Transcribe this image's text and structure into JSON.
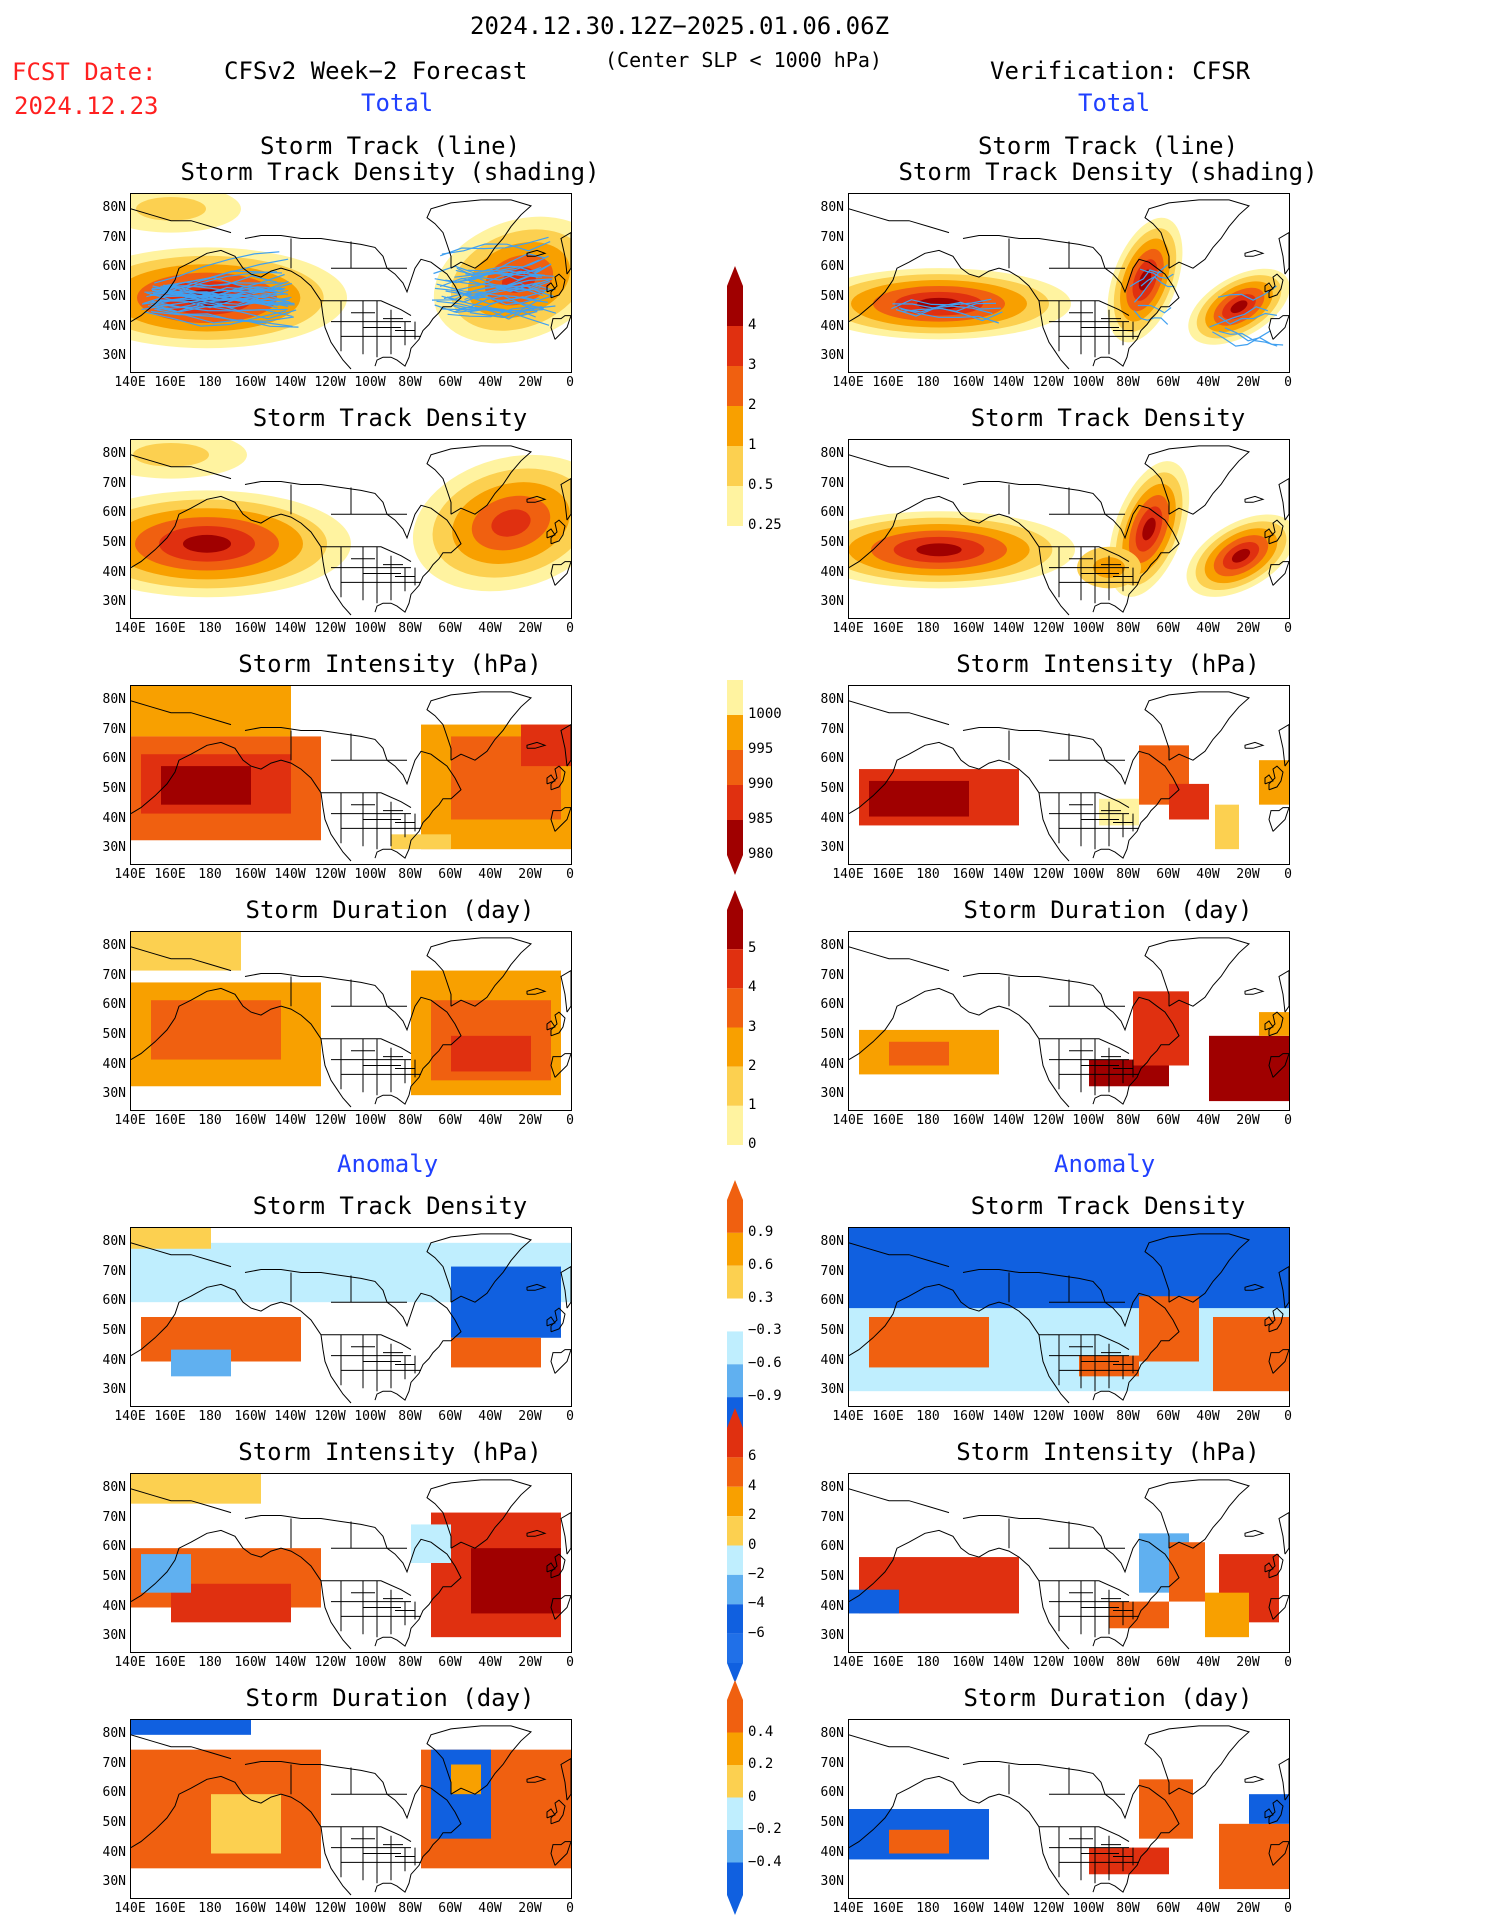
{
  "header": {
    "date_range": "2024.12.30.12Z−2025.01.06.06Z",
    "condition": "(Center SLP < 1000 hPa)",
    "fcst_label": "FCST Date:",
    "fcst_date": "2024.12.23",
    "left_title": "CFSv2 Week−2 Forecast",
    "right_title": "Verification: CFSR",
    "total_label": "Total",
    "anomaly_label": "Anomaly"
  },
  "panel_titles": {
    "track_line": "Storm Track (line)",
    "track_shading": "Storm Track Density (shading)",
    "density": "Storm Track Density",
    "intensity": "Storm Intensity (hPa)",
    "duration": "Storm Duration (day)"
  },
  "axes": {
    "lat_ticks": [
      "80N",
      "70N",
      "60N",
      "50N",
      "40N",
      "30N"
    ],
    "lon_ticks": [
      "140E",
      "160E",
      "180",
      "160W",
      "140W",
      "120W",
      "100W",
      "80W",
      "60W",
      "40W",
      "20W",
      "0"
    ]
  },
  "colorbars": {
    "density_total": [
      "4",
      "3",
      "2",
      "1",
      "0.5",
      "0.25"
    ],
    "intensity_total": [
      "1000",
      "995",
      "990",
      "985",
      "980"
    ],
    "duration_total": [
      "5",
      "4",
      "3",
      "2",
      "1",
      "0"
    ],
    "density_anom": [
      "0.9",
      "0.6",
      "0.3",
      "−0.3",
      "−0.6",
      "−0.9"
    ],
    "intensity_anom": [
      "6",
      "4",
      "2",
      "0",
      "−2",
      "−4",
      "−6"
    ],
    "duration_anom": [
      "0.4",
      "0.2",
      "0",
      "−0.2",
      "−0.4"
    ]
  },
  "colors": {
    "dark_red": "#a00000",
    "red": "#e03010",
    "orange_red": "#f06010",
    "orange": "#f8a000",
    "light_orange": "#fcd050",
    "pale_yellow": "#fff3a0",
    "light_blue": "#bfeefe",
    "mid_blue": "#60b0f0",
    "blue": "#1060e0",
    "track_line": "#40a0f0",
    "title_red": "#ff2020",
    "label_blue": "#2040ff"
  }
}
